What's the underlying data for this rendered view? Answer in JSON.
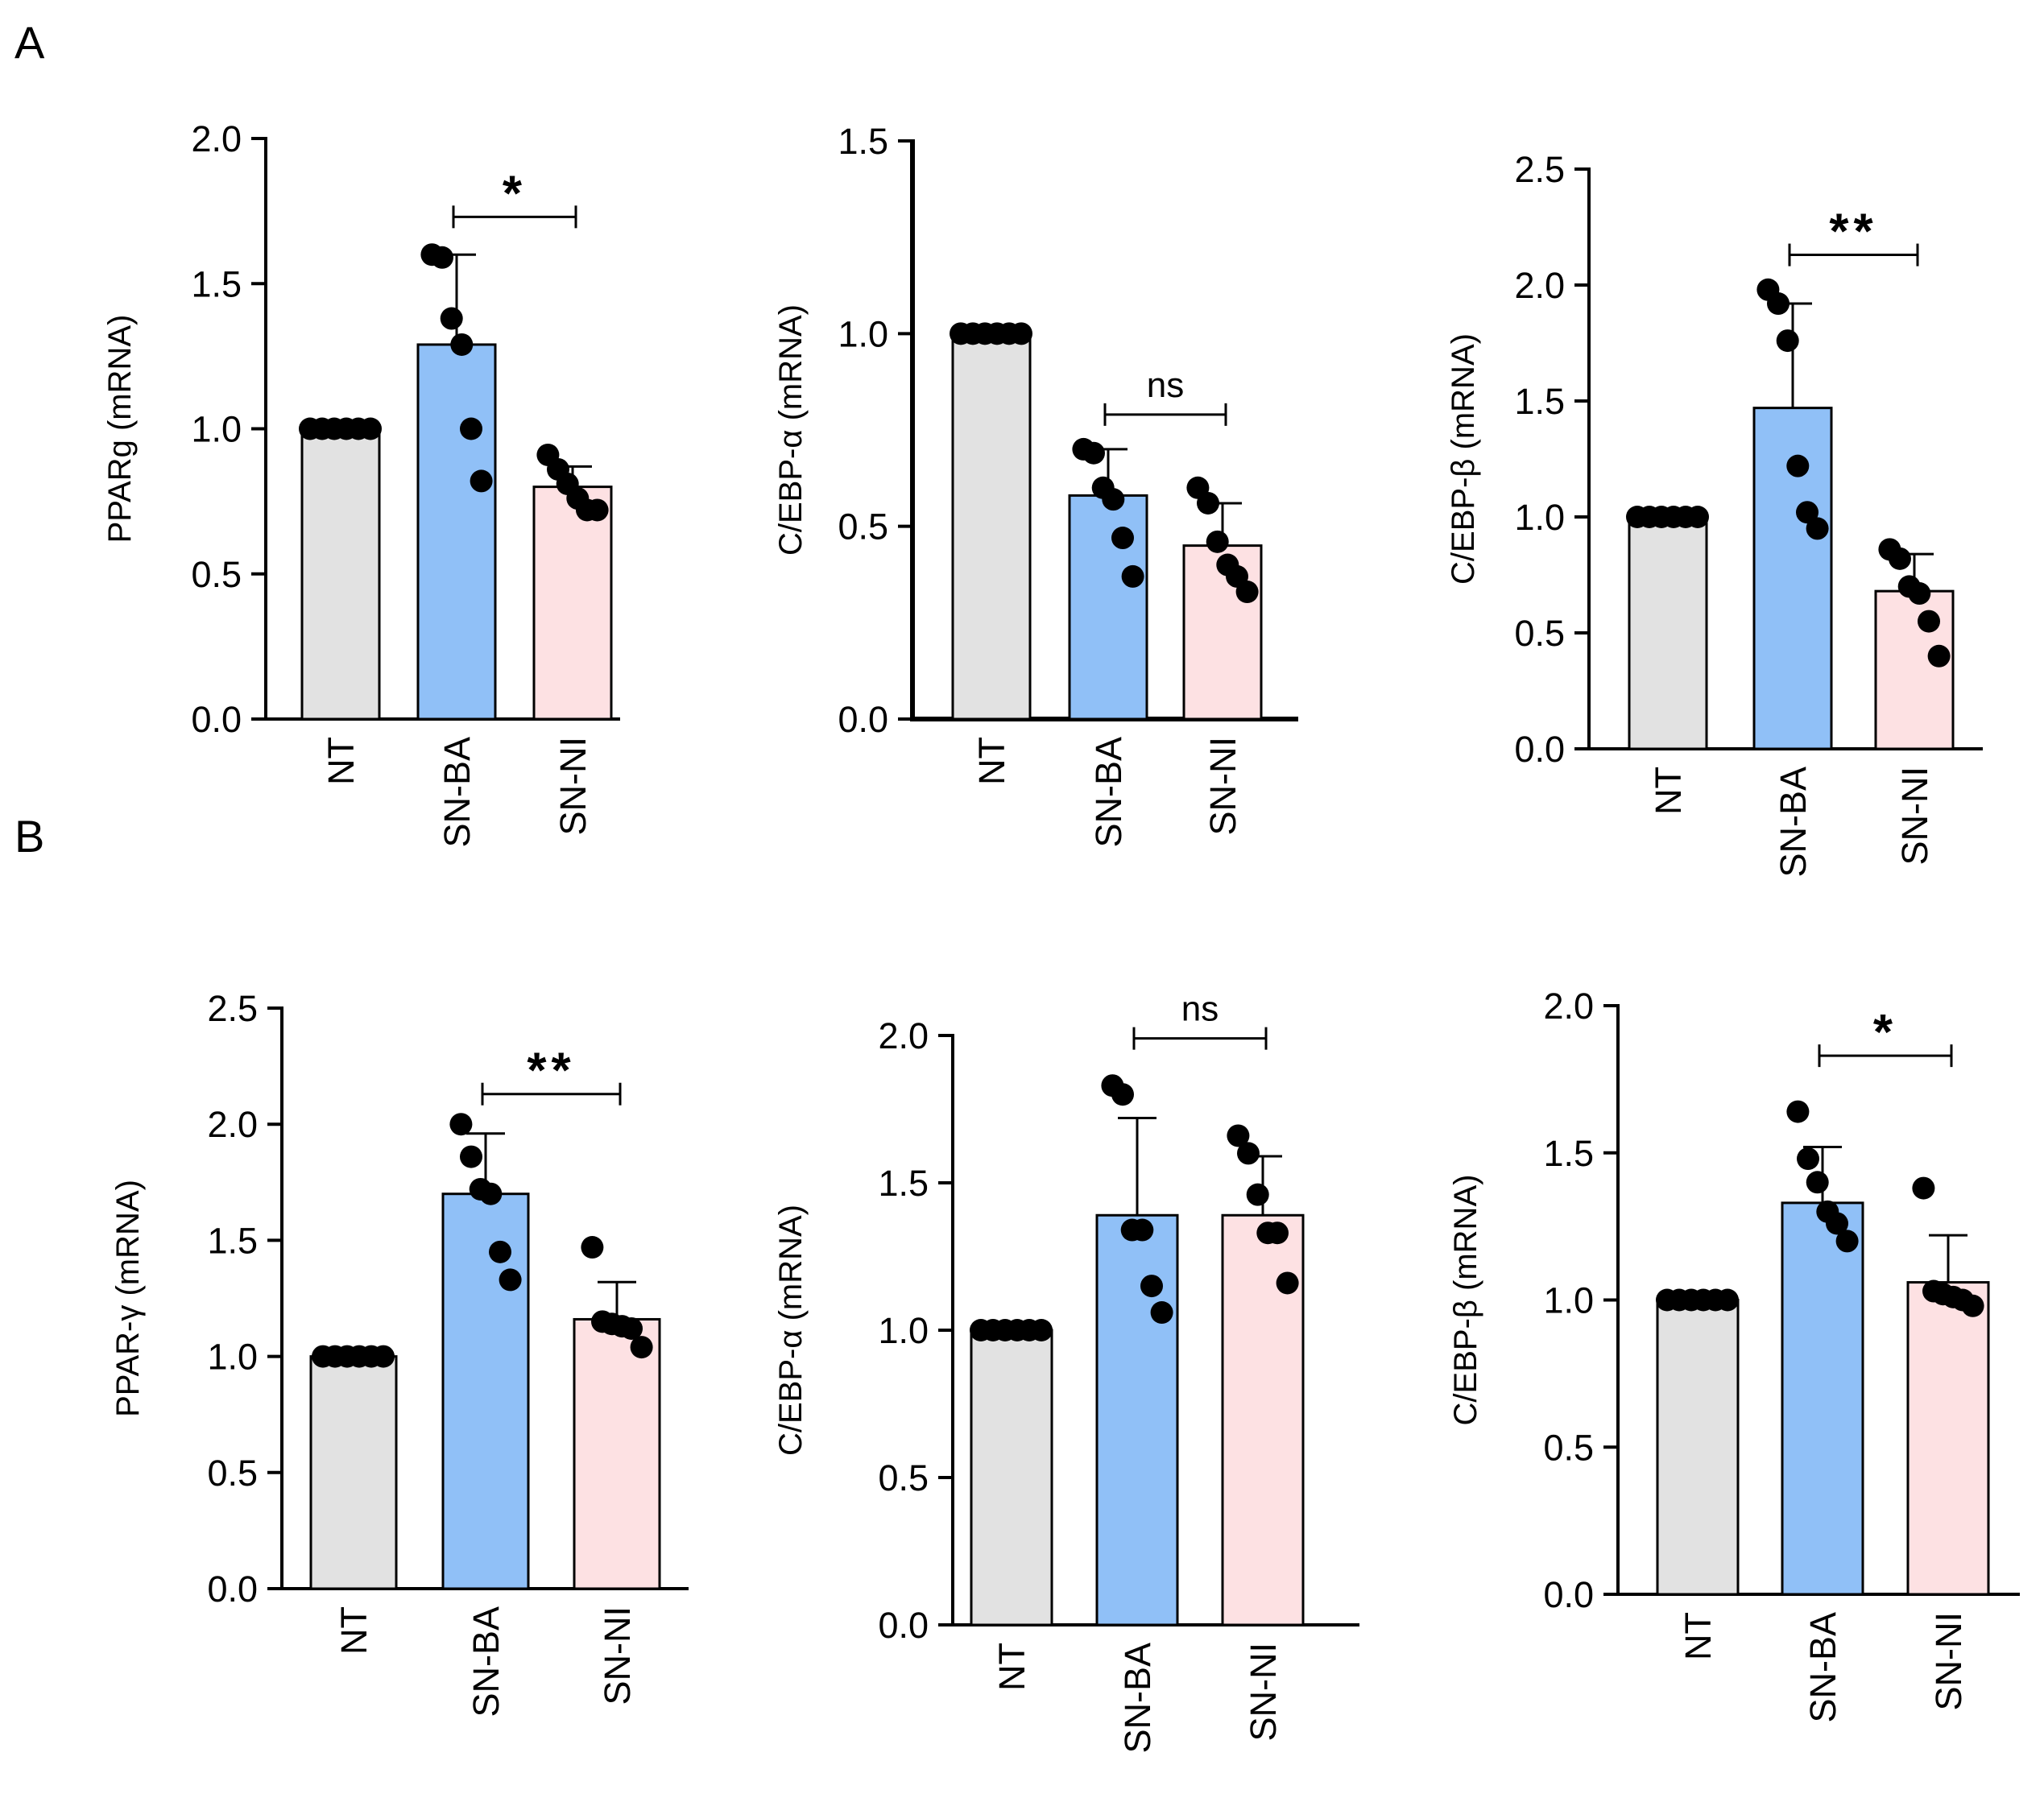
{
  "panel_labels": [
    "A",
    "B"
  ],
  "colors": {
    "NT": "#e2e2e2",
    "SN-BA": "#90c0f7",
    "SN-NI": "#fde1e3",
    "outline": "#000000",
    "dot": "#000000"
  },
  "chart_data": [
    {
      "type": "bar",
      "panel": "A",
      "ylabel": "PPARg (mRNA)",
      "ylim": [
        0,
        2.0
      ],
      "yticks": [
        0.0,
        0.5,
        1.0,
        1.5,
        2.0
      ],
      "tick_labels": [
        "0.0",
        "0.5",
        "1.0",
        "1.5",
        "2.0"
      ],
      "categories": [
        "NT",
        "SN-BA",
        "SN-NI"
      ],
      "values": [
        1.0,
        1.29,
        0.8
      ],
      "errors": [
        0,
        0.31,
        0.07
      ],
      "points": [
        [
          1,
          1,
          1,
          1,
          1,
          1
        ],
        [
          1.6,
          1.59,
          1.38,
          1.29,
          1.0,
          0.82
        ],
        [
          0.91,
          0.86,
          0.81,
          0.76,
          0.72,
          0.72
        ]
      ],
      "significance": [
        {
          "from": 1,
          "to": 2,
          "label": "*",
          "y": 1.73
        }
      ]
    },
    {
      "type": "bar",
      "panel": "A",
      "ylabel": "C/EBP-α (mRNA)",
      "ylim": [
        0,
        1.5
      ],
      "yticks": [
        0.0,
        0.5,
        1.0,
        1.5
      ],
      "tick_labels": [
        "0.0",
        "0.5",
        "1.0",
        "1.5"
      ],
      "categories": [
        "NT",
        "SN-BA",
        "SN-NI"
      ],
      "values": [
        1.0,
        0.58,
        0.45
      ],
      "errors": [
        0,
        0.12,
        0.11
      ],
      "points": [
        [
          1,
          1,
          1,
          1,
          1,
          1
        ],
        [
          0.7,
          0.69,
          0.6,
          0.57,
          0.47,
          0.37
        ],
        [
          0.6,
          0.56,
          0.46,
          0.4,
          0.37,
          0.33
        ]
      ],
      "significance": [
        {
          "from": 1,
          "to": 2,
          "label": "ns",
          "y": 0.79
        }
      ]
    },
    {
      "type": "bar",
      "panel": "A",
      "ylabel": "C/EBP-β (mRNA)",
      "ylim": [
        0,
        2.5
      ],
      "yticks": [
        0.0,
        0.5,
        1.0,
        1.5,
        2.0,
        2.5
      ],
      "tick_labels": [
        "0.0",
        "0.5",
        "1.0",
        "1.5",
        "2.0",
        "2.5"
      ],
      "categories": [
        "NT",
        "SN-BA",
        "SN-NI"
      ],
      "values": [
        1.0,
        1.47,
        0.68
      ],
      "errors": [
        0,
        0.45,
        0.16
      ],
      "points": [
        [
          1,
          1,
          1,
          1,
          1,
          1
        ],
        [
          1.98,
          1.92,
          1.76,
          1.22,
          1.02,
          0.95
        ],
        [
          0.86,
          0.82,
          0.7,
          0.67,
          0.55,
          0.4
        ]
      ],
      "significance": [
        {
          "from": 1,
          "to": 2,
          "label": "**",
          "y": 2.13
        }
      ]
    },
    {
      "type": "bar",
      "panel": "B",
      "ylabel": "PPAR-γ (mRNA)",
      "ylim": [
        0,
        2.5
      ],
      "yticks": [
        0.0,
        0.5,
        1.0,
        1.5,
        2.0,
        2.5
      ],
      "tick_labels": [
        "0.0",
        "0.5",
        "1.0",
        "1.5",
        "2.0",
        "2.5"
      ],
      "categories": [
        "NT",
        "SN-BA",
        "SN-NI"
      ],
      "values": [
        1.0,
        1.7,
        1.16
      ],
      "errors": [
        0,
        0.26,
        0.16
      ],
      "points": [
        [
          1,
          1,
          1,
          1,
          1,
          1
        ],
        [
          2.0,
          1.86,
          1.72,
          1.7,
          1.45,
          1.33
        ],
        [
          1.47,
          1.15,
          1.14,
          1.13,
          1.12,
          1.04
        ]
      ],
      "significance": [
        {
          "from": 1,
          "to": 2,
          "label": "**",
          "y": 2.13
        }
      ]
    },
    {
      "type": "bar",
      "panel": "B",
      "ylabel": "C/EBP-α (mRNA)",
      "ylim": [
        0,
        2.0
      ],
      "yticks": [
        0.0,
        0.5,
        1.0,
        1.5,
        2.0
      ],
      "tick_labels": [
        "0.0",
        "0.5",
        "1.0",
        "1.5",
        "2.0"
      ],
      "categories": [
        "NT",
        "SN-BA",
        "SN-NI"
      ],
      "values": [
        1.0,
        1.39,
        1.39
      ],
      "errors": [
        0,
        0.33,
        0.2
      ],
      "points": [
        [
          1,
          1,
          1,
          1,
          1,
          1
        ],
        [
          1.83,
          1.8,
          1.34,
          1.34,
          1.15,
          1.06
        ],
        [
          1.66,
          1.6,
          1.46,
          1.33,
          1.33,
          1.16
        ]
      ],
      "significance": [
        {
          "from": 1,
          "to": 2,
          "label": "ns",
          "y": 1.99
        }
      ]
    },
    {
      "type": "bar",
      "panel": "B",
      "ylabel": "C/EBP-β (mRNA)",
      "ylim": [
        0,
        2.0
      ],
      "yticks": [
        0.0,
        0.5,
        1.0,
        1.5,
        2.0
      ],
      "tick_labels": [
        "0.0",
        "0.5",
        "1.0",
        "1.5",
        "2.0"
      ],
      "categories": [
        "NT",
        "SN-BA",
        "SN-NI"
      ],
      "values": [
        1.0,
        1.33,
        1.06
      ],
      "errors": [
        0,
        0.19,
        0.16
      ],
      "points": [
        [
          1,
          1,
          1,
          1,
          1,
          1
        ],
        [
          1.64,
          1.48,
          1.4,
          1.3,
          1.26,
          1.2
        ],
        [
          1.38,
          1.03,
          1.02,
          1.01,
          1.0,
          0.98
        ]
      ],
      "significance": [
        {
          "from": 1,
          "to": 2,
          "label": "*",
          "y": 1.83
        }
      ]
    }
  ]
}
